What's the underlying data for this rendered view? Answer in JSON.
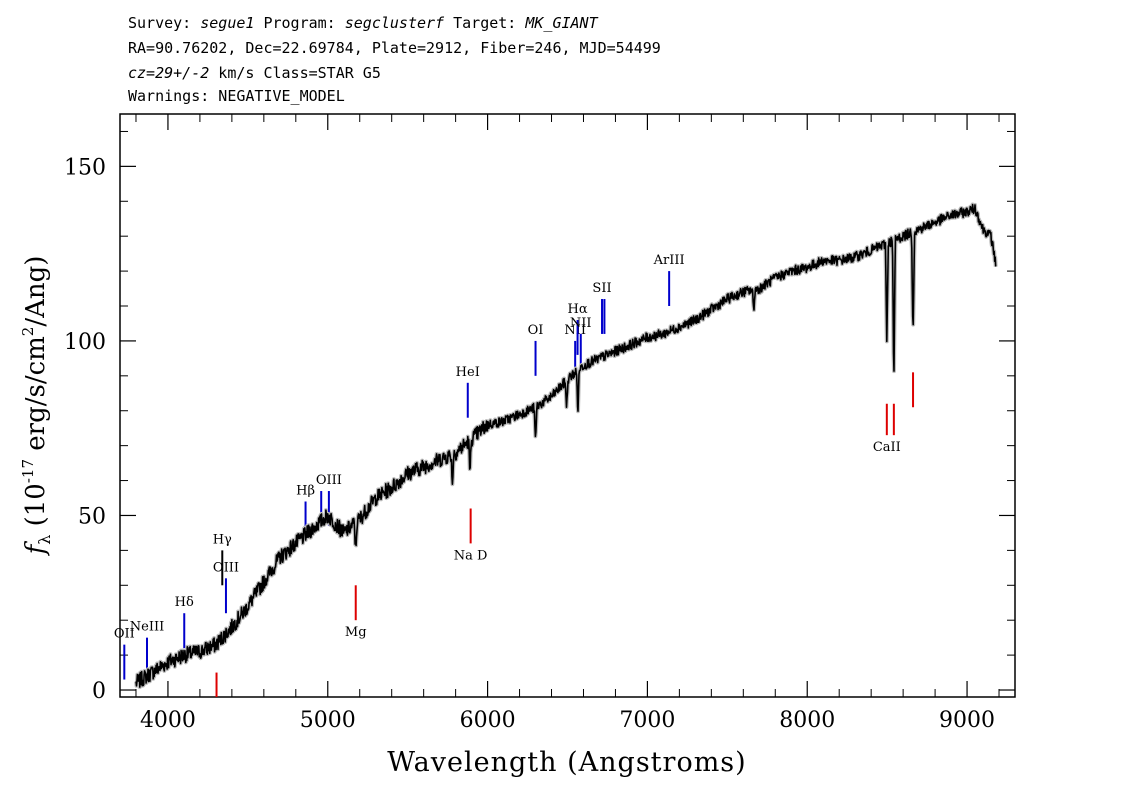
{
  "header": {
    "line1": {
      "survey_label": "Survey: ",
      "survey": "segue1",
      "program_label": " Program: ",
      "program": "segclusterf",
      "target_label": " Target: ",
      "target": "MK_GIANT"
    },
    "line2": "RA=90.76202, Dec=22.69784, Plate=2912, Fiber=246, MJD=54499",
    "line3": {
      "cz": "cz=29+/-2",
      "rest": " km/s Class=STAR G5"
    },
    "line4": "Warnings: NEGATIVE_MODEL"
  },
  "chart_data": {
    "type": "line",
    "xlabel": "Wavelength (Angstroms)",
    "ylabel_parts": {
      "f": "f",
      "sub": "λ",
      "pre": " (10",
      "exp": "-17",
      "mid": " erg/s/cm",
      "exp2": "2",
      "post": "/Ang)"
    },
    "xlim": [
      3700,
      9300
    ],
    "ylim": [
      -2,
      165
    ],
    "xticks": [
      4000,
      5000,
      6000,
      7000,
      8000,
      9000
    ],
    "xtick_labels": [
      "4000",
      "5000",
      "6000",
      "7000",
      "8000",
      "9000"
    ],
    "yticks": [
      0,
      50,
      100,
      150
    ],
    "ytick_labels": [
      "0",
      "50",
      "100",
      "150"
    ],
    "x_minor_step": 200,
    "y_minor_step": 10,
    "series": [
      {
        "color": "#000000",
        "x": [
          3800,
          3900,
          4000,
          4100,
          4200,
          4300,
          4400,
          4500,
          4600,
          4700,
          4800,
          4900,
          5000,
          5100,
          5200,
          5300,
          5400,
          5500,
          5600,
          5700,
          5800,
          5900,
          6000,
          6100,
          6200,
          6300,
          6400,
          6500,
          6600,
          6700,
          6800,
          6900,
          7000,
          7100,
          7200,
          7300,
          7400,
          7500,
          7600,
          7700,
          7800,
          7900,
          8000,
          8100,
          8200,
          8300,
          8400,
          8500,
          8600,
          8700,
          8800,
          8900,
          9000,
          9050,
          9100,
          9150,
          9180
        ],
        "y": [
          2,
          5,
          8,
          10,
          11,
          13,
          18,
          24,
          31,
          38,
          42,
          46,
          50,
          45,
          49,
          55,
          58,
          62,
          64,
          66,
          68,
          72,
          76,
          77,
          79,
          81,
          84,
          89,
          93,
          95,
          97,
          99,
          101,
          102,
          104,
          106,
          109,
          112,
          114,
          115,
          118,
          120,
          121,
          123,
          123,
          124,
          126,
          128,
          130,
          132,
          134,
          136,
          137,
          138,
          132,
          130,
          122
        ]
      }
    ],
    "absorption_dips": [
      {
        "x": 5175,
        "depth": 8
      },
      {
        "x": 5780,
        "depth": 8
      },
      {
        "x": 5890,
        "depth": 10
      },
      {
        "x": 6300,
        "depth": 10
      },
      {
        "x": 6495,
        "depth": 8
      },
      {
        "x": 6565,
        "depth": 12
      },
      {
        "x": 7665,
        "depth": 6
      },
      {
        "x": 8498,
        "depth": 28
      },
      {
        "x": 8542,
        "depth": 42
      },
      {
        "x": 8662,
        "depth": 30
      }
    ],
    "emission_lines": [
      {
        "label": "OII",
        "x": 3727,
        "color": "#0000cc",
        "y0": 3,
        "y1": 13
      },
      {
        "label": "NeIII",
        "x": 3869,
        "color": "#0000cc",
        "y0": 6,
        "y1": 15
      },
      {
        "label": "Hδ",
        "x": 4102,
        "color": "#0000cc",
        "y0": 12,
        "y1": 22
      },
      {
        "label": "Hγ",
        "x": 4340,
        "color": "#000000",
        "y0": 30,
        "y1": 40
      },
      {
        "label": "OIII",
        "x": 4363,
        "color": "#0000cc",
        "y0": 22,
        "y1": 32
      },
      {
        "label": "Hβ",
        "x": 4861,
        "color": "#0000cc",
        "y0": 44,
        "y1": 54
      },
      {
        "label": "",
        "x": 4959,
        "color": "#0000cc",
        "y0": 47,
        "y1": 57
      },
      {
        "label": "OIII",
        "x": 5007,
        "color": "#0000cc",
        "y0": 47,
        "y1": 57
      },
      {
        "label": "HeI",
        "x": 5876,
        "color": "#0000cc",
        "y0": 78,
        "y1": 88
      },
      {
        "label": "OI",
        "x": 6300,
        "color": "#0000cc",
        "y0": 90,
        "y1": 100
      },
      {
        "label": "NII",
        "x": 6548,
        "color": "#0000cc",
        "y0": 90,
        "y1": 100
      },
      {
        "label": "Hα",
        "x": 6563,
        "color": "#0000cc",
        "y0": 96,
        "y1": 106
      },
      {
        "label": "NII",
        "x": 6583,
        "color": "#0000cc",
        "y0": 92,
        "y1": 102
      },
      {
        "label": "SII",
        "x": 6716,
        "color": "#0000cc",
        "y0": 102,
        "y1": 112
      },
      {
        "label": "",
        "x": 6731,
        "color": "#0000cc",
        "y0": 102,
        "y1": 112
      },
      {
        "label": "ArIII",
        "x": 7136,
        "color": "#0000cc",
        "y0": 110,
        "y1": 120
      }
    ],
    "absorption_lines": [
      {
        "label": "",
        "x": 4304,
        "color": "#dd0000",
        "y0": -2,
        "y1": 5
      },
      {
        "label": "Mg",
        "x": 5175,
        "color": "#dd0000",
        "y0": 20,
        "y1": 30
      },
      {
        "label": "Na D",
        "x": 5894,
        "color": "#dd0000",
        "y0": 42,
        "y1": 52
      },
      {
        "label": "CaII",
        "x": 8498,
        "color": "#dd0000",
        "y0": 73,
        "y1": 82
      },
      {
        "label": "",
        "x": 8542,
        "color": "#dd0000",
        "y0": 73,
        "y1": 82
      },
      {
        "label": "",
        "x": 8662,
        "color": "#dd0000",
        "y0": 81,
        "y1": 91
      }
    ]
  }
}
